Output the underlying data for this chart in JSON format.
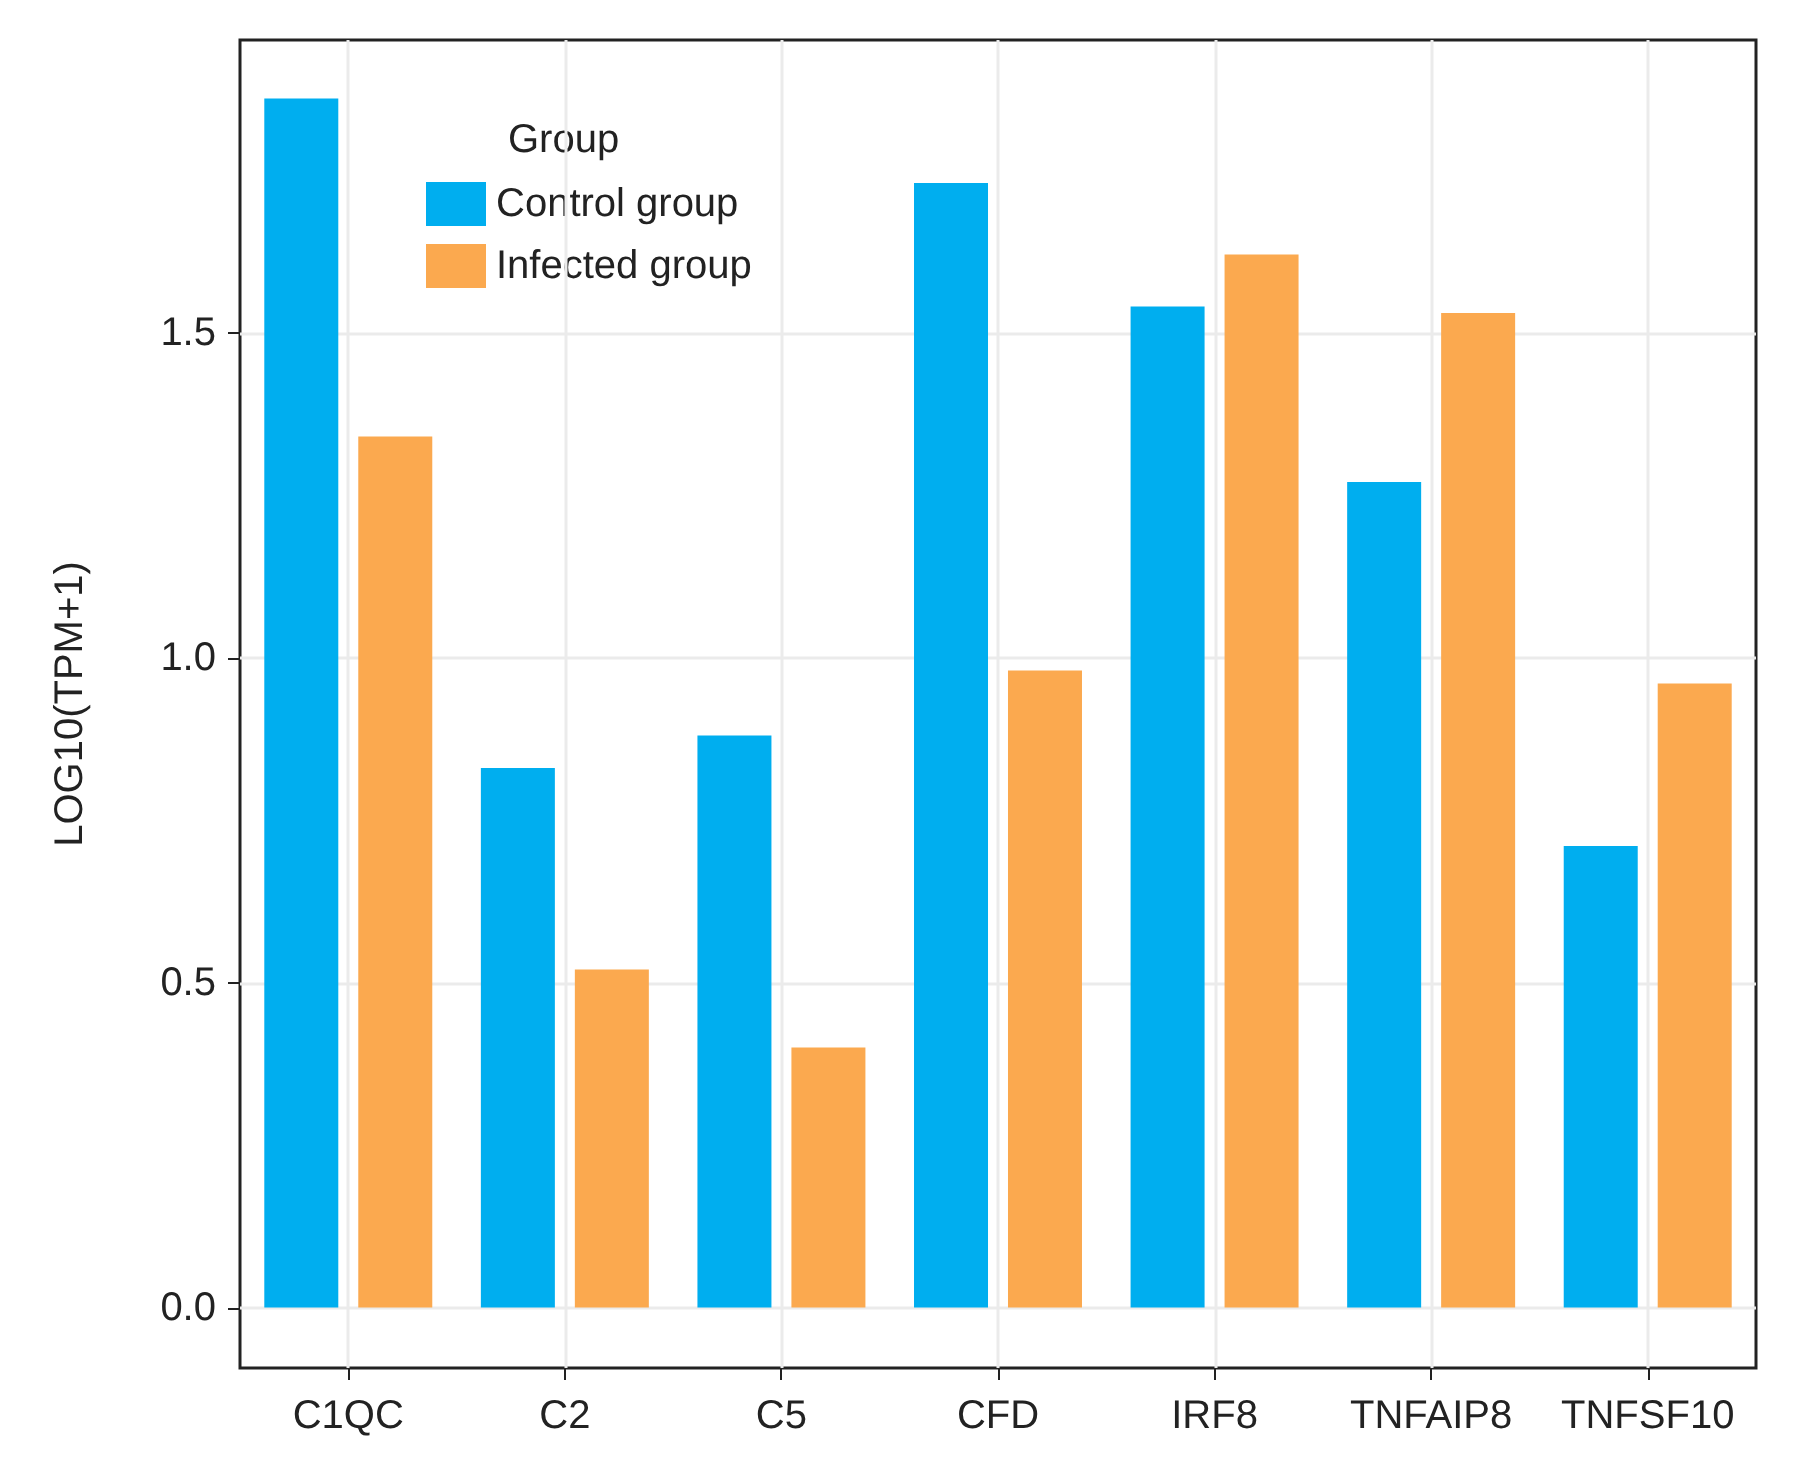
{
  "chart_data": {
    "type": "bar",
    "ylabel": "LOG10(TPM+1)",
    "legend_title": "Group",
    "categories": [
      "C1QC",
      "C2",
      "C5",
      "CFD",
      "IRF8",
      "TNFAIP8",
      "TNFSF10"
    ],
    "series": [
      {
        "name": "Control group",
        "color": "#00aeef",
        "values": [
          1.86,
          0.83,
          0.88,
          1.73,
          1.54,
          1.27,
          0.71
        ]
      },
      {
        "name": "Infected group",
        "color": "#fba94f",
        "values": [
          1.34,
          0.52,
          0.4,
          0.98,
          1.62,
          1.53,
          0.96
        ]
      }
    ],
    "ylim": [
      -0.093,
      1.95
    ],
    "yticks": [
      {
        "value": 0,
        "label": "0.0"
      },
      0.5,
      {
        "value": 1,
        "label": "1.0"
      },
      1.5
    ],
    "grid": true,
    "legend": "top left"
  }
}
